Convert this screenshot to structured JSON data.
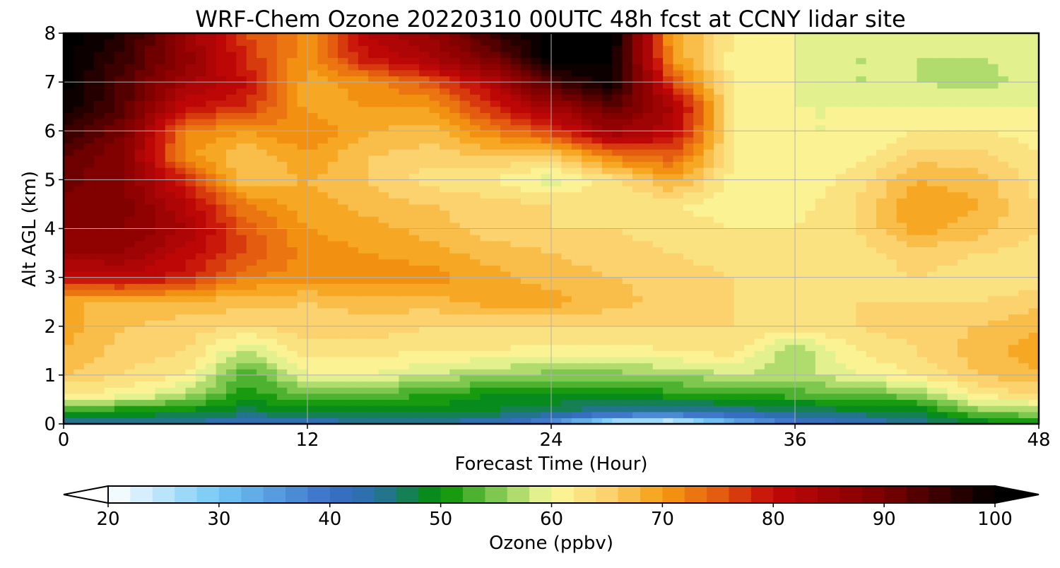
{
  "chart_data": {
    "type": "heatmap",
    "title": "WRF-Chem Ozone  20220310 00UTC 48h fcst at CCNY lidar site",
    "xlabel": "Forecast Time (Hour)",
    "ylabel": "Alt AGL (km)",
    "xlim": [
      0,
      48
    ],
    "ylim": [
      0,
      8
    ],
    "xticks": [
      0,
      12,
      24,
      36,
      48
    ],
    "yticks": [
      0,
      1,
      2,
      3,
      4,
      5,
      6,
      7,
      8
    ],
    "grid": true,
    "colorbar": {
      "label": "Ozone  (ppbv)",
      "range": [
        20,
        100
      ],
      "step": 2,
      "ticks": [
        20,
        30,
        40,
        50,
        60,
        70,
        80,
        90,
        100
      ],
      "extend": "both",
      "color_stops": [
        {
          "value": 20,
          "color": "#ffffff"
        },
        {
          "value": 30,
          "color": "#72c8f5"
        },
        {
          "value": 40,
          "color": "#3a6fc6"
        },
        {
          "value": 44,
          "color": "#2a6fa8"
        },
        {
          "value": 50,
          "color": "#009000"
        },
        {
          "value": 55,
          "color": "#7ec850"
        },
        {
          "value": 60,
          "color": "#fbfb9c"
        },
        {
          "value": 65,
          "color": "#fbd26e"
        },
        {
          "value": 70,
          "color": "#f59d12"
        },
        {
          "value": 75,
          "color": "#e45c10"
        },
        {
          "value": 80,
          "color": "#c40808"
        },
        {
          "value": 90,
          "color": "#7a0000"
        },
        {
          "value": 100,
          "color": "#000000"
        }
      ]
    },
    "x": [
      0,
      3,
      6,
      9,
      12,
      15,
      18,
      21,
      24,
      27,
      30,
      33,
      36,
      39,
      42,
      45,
      48
    ],
    "y": [
      0,
      0.25,
      0.6,
      1,
      1.5,
      2,
      2.5,
      3,
      3.5,
      4,
      4.5,
      5,
      5.5,
      6,
      6.5,
      7,
      7.5,
      8
    ],
    "z": [
      [
        44,
        44,
        43,
        42,
        42,
        43,
        43,
        42,
        36,
        22,
        20,
        30,
        38,
        42,
        44,
        48,
        50
      ],
      [
        50,
        50,
        49,
        47,
        48,
        49,
        49,
        48,
        46,
        44,
        43,
        44,
        46,
        47,
        48,
        55,
        56
      ],
      [
        62,
        61,
        57,
        51,
        54,
        53,
        52,
        50,
        50,
        50,
        51,
        52,
        53,
        54,
        55,
        62,
        64
      ],
      [
        66,
        64,
        62,
        52,
        60,
        60,
        58,
        56,
        55,
        55,
        56,
        58,
        57,
        60,
        62,
        66,
        68
      ],
      [
        68,
        65,
        64,
        58,
        63,
        63,
        62,
        62,
        61,
        61,
        62,
        63,
        56,
        62,
        64,
        67,
        69
      ],
      [
        69,
        66,
        65,
        64,
        65,
        65,
        64,
        64,
        64,
        64,
        64,
        64,
        63,
        64,
        65,
        66,
        68
      ],
      [
        68,
        68,
        67,
        67,
        66,
        67,
        67,
        69,
        69,
        67,
        65,
        64,
        63,
        64,
        64,
        64,
        65
      ],
      [
        80,
        81,
        79,
        72,
        71,
        71,
        71,
        69,
        67,
        66,
        65,
        64,
        63,
        63,
        64,
        63,
        63
      ],
      [
        86,
        86,
        81,
        76,
        71,
        70,
        69,
        67,
        66,
        65,
        64,
        63,
        62,
        63,
        65,
        64,
        63
      ],
      [
        88,
        88,
        84,
        75,
        70,
        69,
        67,
        65,
        64,
        64,
        63,
        62,
        62,
        64,
        69,
        67,
        64
      ],
      [
        89,
        89,
        82,
        72,
        69,
        67,
        66,
        65,
        64,
        63,
        62,
        61,
        61,
        64,
        70,
        68,
        64
      ],
      [
        91,
        88,
        78,
        66,
        68,
        66,
        63,
        62,
        59,
        63,
        69,
        61,
        60,
        63,
        68,
        67,
        63
      ],
      [
        92,
        88,
        71,
        66,
        70,
        66,
        65,
        66,
        65,
        73,
        75,
        62,
        60,
        61,
        65,
        65,
        62
      ],
      [
        96,
        90,
        72,
        70,
        72,
        68,
        67,
        72,
        77,
        86,
        82,
        62,
        60,
        60,
        62,
        62,
        61
      ],
      [
        100,
        93,
        80,
        78,
        69,
        70,
        70,
        78,
        85,
        92,
        84,
        62,
        60,
        60,
        60,
        60,
        60
      ],
      [
        101,
        93,
        85,
        80,
        69,
        71,
        75,
        82,
        94,
        100,
        76,
        61,
        60,
        58,
        58,
        57,
        59
      ],
      [
        101,
        95,
        87,
        78,
        70,
        80,
        84,
        90,
        101,
        100,
        70,
        61,
        60,
        58,
        58,
        58,
        59
      ],
      [
        102,
        97,
        86,
        76,
        71,
        82,
        86,
        95,
        101,
        101,
        69,
        62,
        60,
        59,
        58,
        59,
        60
      ]
    ]
  }
}
